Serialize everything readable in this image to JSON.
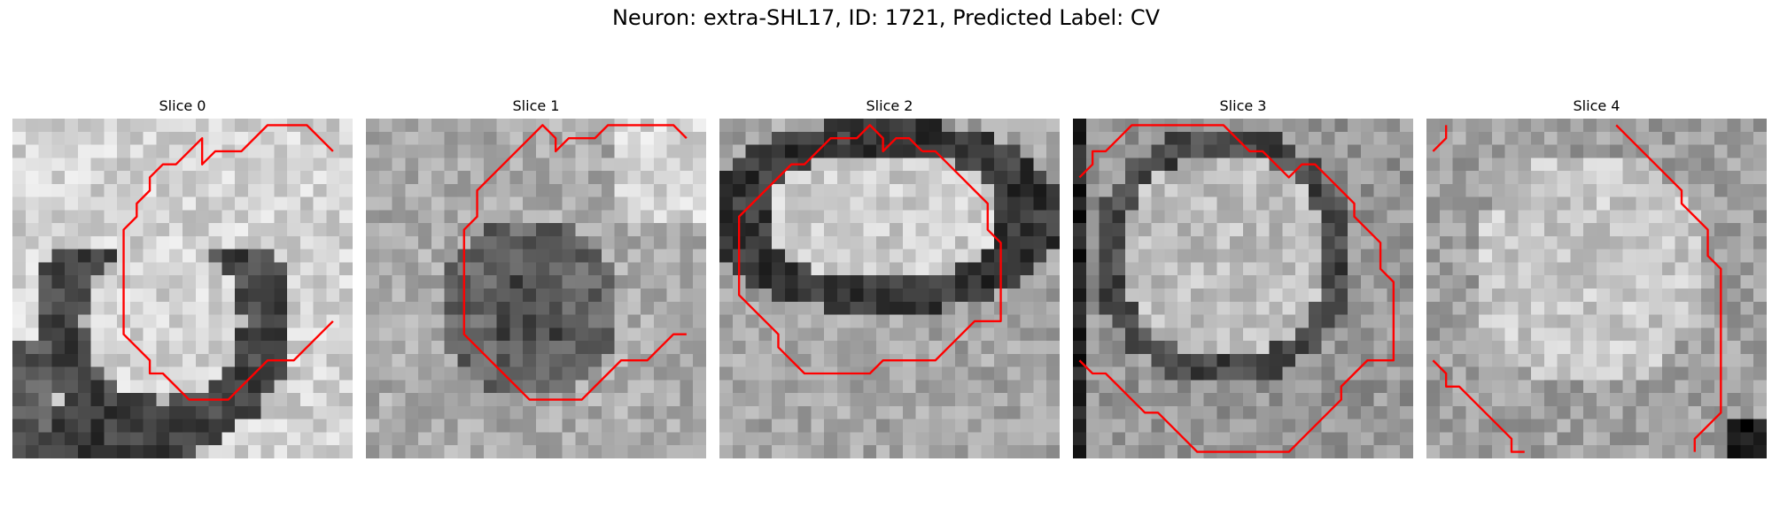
{
  "figure": {
    "title": "Neuron: extra-SHL17, ID: 1721, Predicted Label: CV"
  },
  "panels": [
    {
      "title": "Slice 0",
      "contour_color": "#ff0000",
      "image_description_kind": "grayscale microscopy slice with red contour",
      "contour_paths": [
        [
          [
            24.5,
            2.5
          ],
          [
            22.5,
            0.5
          ],
          [
            19.5,
            0.5
          ],
          [
            17.5,
            2.5
          ],
          [
            15.5,
            2.5
          ],
          [
            14.5,
            3.5
          ],
          [
            14.5,
            2.5
          ],
          [
            14.5,
            3.5
          ],
          [
            14.5,
            2.5
          ],
          [
            14.5,
            1.5
          ],
          [
            13.5,
            2.5
          ],
          [
            12.5,
            3.5
          ],
          [
            11.5,
            3.5
          ],
          [
            10.5,
            4.5
          ],
          [
            10.5,
            5.5
          ],
          [
            9.5,
            6.5
          ],
          [
            9.5,
            7.5
          ],
          [
            8.5,
            8.5
          ],
          [
            8.5,
            10.5
          ],
          [
            8.5,
            12.5
          ],
          [
            8.5,
            14.5
          ],
          [
            8.5,
            16.5
          ],
          [
            9.5,
            17.5
          ],
          [
            10.5,
            18.5
          ],
          [
            10.5,
            19.5
          ],
          [
            11.5,
            19.5
          ],
          [
            12.5,
            20.5
          ],
          [
            13.5,
            21.5
          ],
          [
            15.5,
            21.5
          ],
          [
            16.5,
            21.5
          ],
          [
            17.5,
            20.5
          ],
          [
            18.5,
            19.5
          ],
          [
            19.5,
            18.5
          ],
          [
            20.5,
            18.5
          ],
          [
            21.5,
            18.5
          ],
          [
            22.5,
            17.5
          ],
          [
            23.5,
            16.5
          ],
          [
            24.5,
            15.5
          ]
        ]
      ]
    },
    {
      "title": "Slice 1",
      "contour_color": "#ff0000",
      "image_description_kind": "grayscale microscopy slice with red contour",
      "contour_paths": [
        [
          [
            24.5,
            1.5
          ],
          [
            23.5,
            0.5
          ],
          [
            18.5,
            0.5
          ],
          [
            17.5,
            1.5
          ],
          [
            15.5,
            1.5
          ],
          [
            14.5,
            2.5
          ],
          [
            14.5,
            1.5
          ],
          [
            13.5,
            0.5
          ],
          [
            12.5,
            1.5
          ],
          [
            11.5,
            2.5
          ],
          [
            10.5,
            3.5
          ],
          [
            9.5,
            4.5
          ],
          [
            8.5,
            5.5
          ],
          [
            8.5,
            7.5
          ],
          [
            7.5,
            8.5
          ],
          [
            7.5,
            10.5
          ],
          [
            7.5,
            12.5
          ],
          [
            7.5,
            14.5
          ],
          [
            7.5,
            16.5
          ],
          [
            8.5,
            17.5
          ],
          [
            9.5,
            18.5
          ],
          [
            10.5,
            19.5
          ],
          [
            11.5,
            20.5
          ],
          [
            12.5,
            21.5
          ],
          [
            13.5,
            21.5
          ],
          [
            15.5,
            21.5
          ],
          [
            16.5,
            21.5
          ],
          [
            17.5,
            20.5
          ],
          [
            18.5,
            19.5
          ],
          [
            19.5,
            18.5
          ],
          [
            21.5,
            18.5
          ],
          [
            22.5,
            17.5
          ],
          [
            23.5,
            16.5
          ],
          [
            24.5,
            16.5
          ]
        ]
      ]
    },
    {
      "title": "Slice 2",
      "contour_color": "#ff0000",
      "image_description_kind": "grayscale microscopy slice with red contour",
      "contour_paths": [
        [
          [
            15.5,
            2.5
          ],
          [
            14.5,
            1.5
          ],
          [
            13.5,
            1.5
          ],
          [
            12.5,
            2.5
          ],
          [
            12.5,
            1.5
          ],
          [
            11.5,
            0.5
          ],
          [
            10.5,
            1.5
          ],
          [
            9.5,
            1.5
          ],
          [
            8.5,
            1.5
          ],
          [
            7.5,
            2.5
          ],
          [
            6.5,
            3.5
          ],
          [
            5.5,
            3.5
          ],
          [
            4.5,
            4.5
          ],
          [
            3.5,
            5.5
          ],
          [
            2.5,
            6.5
          ],
          [
            1.5,
            7.5
          ],
          [
            1.5,
            9.5
          ],
          [
            1.5,
            12.5
          ],
          [
            1.5,
            13.5
          ],
          [
            2.5,
            14.5
          ],
          [
            3.5,
            15.5
          ],
          [
            4.5,
            16.5
          ],
          [
            4.5,
            17.5
          ],
          [
            5.5,
            18.5
          ],
          [
            6.5,
            19.5
          ],
          [
            8.5,
            19.5
          ],
          [
            10.5,
            19.5
          ],
          [
            11.5,
            19.5
          ],
          [
            12.5,
            18.5
          ],
          [
            14.5,
            18.5
          ],
          [
            16.5,
            18.5
          ],
          [
            17.5,
            17.5
          ],
          [
            18.5,
            16.5
          ],
          [
            19.5,
            15.5
          ],
          [
            21.5,
            15.5
          ],
          [
            21.5,
            13.5
          ],
          [
            21.5,
            11.5
          ],
          [
            21.5,
            9.5
          ],
          [
            20.5,
            8.5
          ],
          [
            20.5,
            6.5
          ],
          [
            19.5,
            5.5
          ],
          [
            18.5,
            4.5
          ],
          [
            17.5,
            3.5
          ],
          [
            16.5,
            2.5
          ],
          [
            15.5,
            2.5
          ]
        ]
      ]
    },
    {
      "title": "Slice 3",
      "contour_color": "#ff0000",
      "image_description_kind": "grayscale microscopy slice with red contour",
      "contour_paths": [
        [
          [
            0.5,
            4.5
          ],
          [
            1.5,
            3.5
          ],
          [
            1.5,
            2.5
          ],
          [
            2.5,
            2.5
          ],
          [
            3.5,
            1.5
          ],
          [
            4.5,
            0.5
          ],
          [
            6.5,
            0.5
          ],
          [
            8.5,
            0.5
          ],
          [
            11.5,
            0.5
          ],
          [
            12.5,
            1.5
          ],
          [
            13.5,
            2.5
          ],
          [
            14.5,
            2.5
          ],
          [
            15.5,
            3.5
          ],
          [
            16.5,
            4.5
          ],
          [
            17.5,
            3.5
          ],
          [
            18.5,
            3.5
          ],
          [
            19.5,
            4.5
          ],
          [
            20.5,
            5.5
          ],
          [
            21.5,
            6.5
          ],
          [
            21.5,
            7.5
          ],
          [
            22.5,
            8.5
          ],
          [
            23.5,
            9.5
          ],
          [
            23.5,
            11.5
          ],
          [
            24.5,
            12.5
          ],
          [
            24.5,
            14.5
          ],
          [
            24.5,
            16.5
          ],
          [
            24.5,
            18.5
          ],
          [
            23.5,
            18.5
          ],
          [
            22.5,
            18.5
          ],
          [
            21.5,
            19.5
          ],
          [
            20.5,
            20.5
          ],
          [
            20.5,
            21.5
          ],
          [
            19.5,
            22.5
          ],
          [
            18.5,
            23.5
          ],
          [
            17.5,
            24.5
          ],
          [
            16.5,
            25.5
          ],
          [
            14.5,
            25.5
          ],
          [
            12.5,
            25.5
          ],
          [
            10.5,
            25.5
          ],
          [
            9.5,
            25.5
          ],
          [
            8.5,
            24.5
          ],
          [
            7.5,
            23.5
          ],
          [
            6.5,
            22.5
          ],
          [
            5.5,
            22.5
          ],
          [
            4.5,
            21.5
          ],
          [
            3.5,
            20.5
          ],
          [
            2.5,
            19.5
          ],
          [
            1.5,
            19.5
          ],
          [
            0.5,
            18.5
          ]
        ]
      ]
    },
    {
      "title": "Slice 4",
      "contour_color": "#ff0000",
      "image_description_kind": "grayscale microscopy slice with red contour",
      "contour_paths": [
        [
          [
            1.5,
            0.5
          ],
          [
            1.5,
            1.5
          ],
          [
            0.5,
            2.5
          ]
        ],
        [
          [
            14.5,
            0.5
          ],
          [
            15.5,
            1.5
          ],
          [
            16.5,
            2.5
          ],
          [
            17.5,
            3.5
          ],
          [
            18.5,
            4.5
          ],
          [
            19.5,
            5.5
          ],
          [
            19.5,
            6.5
          ],
          [
            20.5,
            7.5
          ],
          [
            21.5,
            8.5
          ],
          [
            21.5,
            10.5
          ],
          [
            22.5,
            11.5
          ],
          [
            22.5,
            13.5
          ],
          [
            22.5,
            15.5
          ],
          [
            22.5,
            17.5
          ],
          [
            22.5,
            19.5
          ],
          [
            22.5,
            22.5
          ],
          [
            21.5,
            23.5
          ],
          [
            20.5,
            24.5
          ],
          [
            20.5,
            25.5
          ]
        ],
        [
          [
            0.5,
            18.5
          ],
          [
            1.5,
            19.5
          ],
          [
            1.5,
            20.5
          ],
          [
            2.5,
            20.5
          ],
          [
            3.5,
            21.5
          ],
          [
            4.5,
            22.5
          ],
          [
            5.5,
            23.5
          ],
          [
            6.5,
            24.5
          ],
          [
            6.5,
            25.5
          ],
          [
            7.5,
            25.5
          ]
        ]
      ]
    }
  ]
}
